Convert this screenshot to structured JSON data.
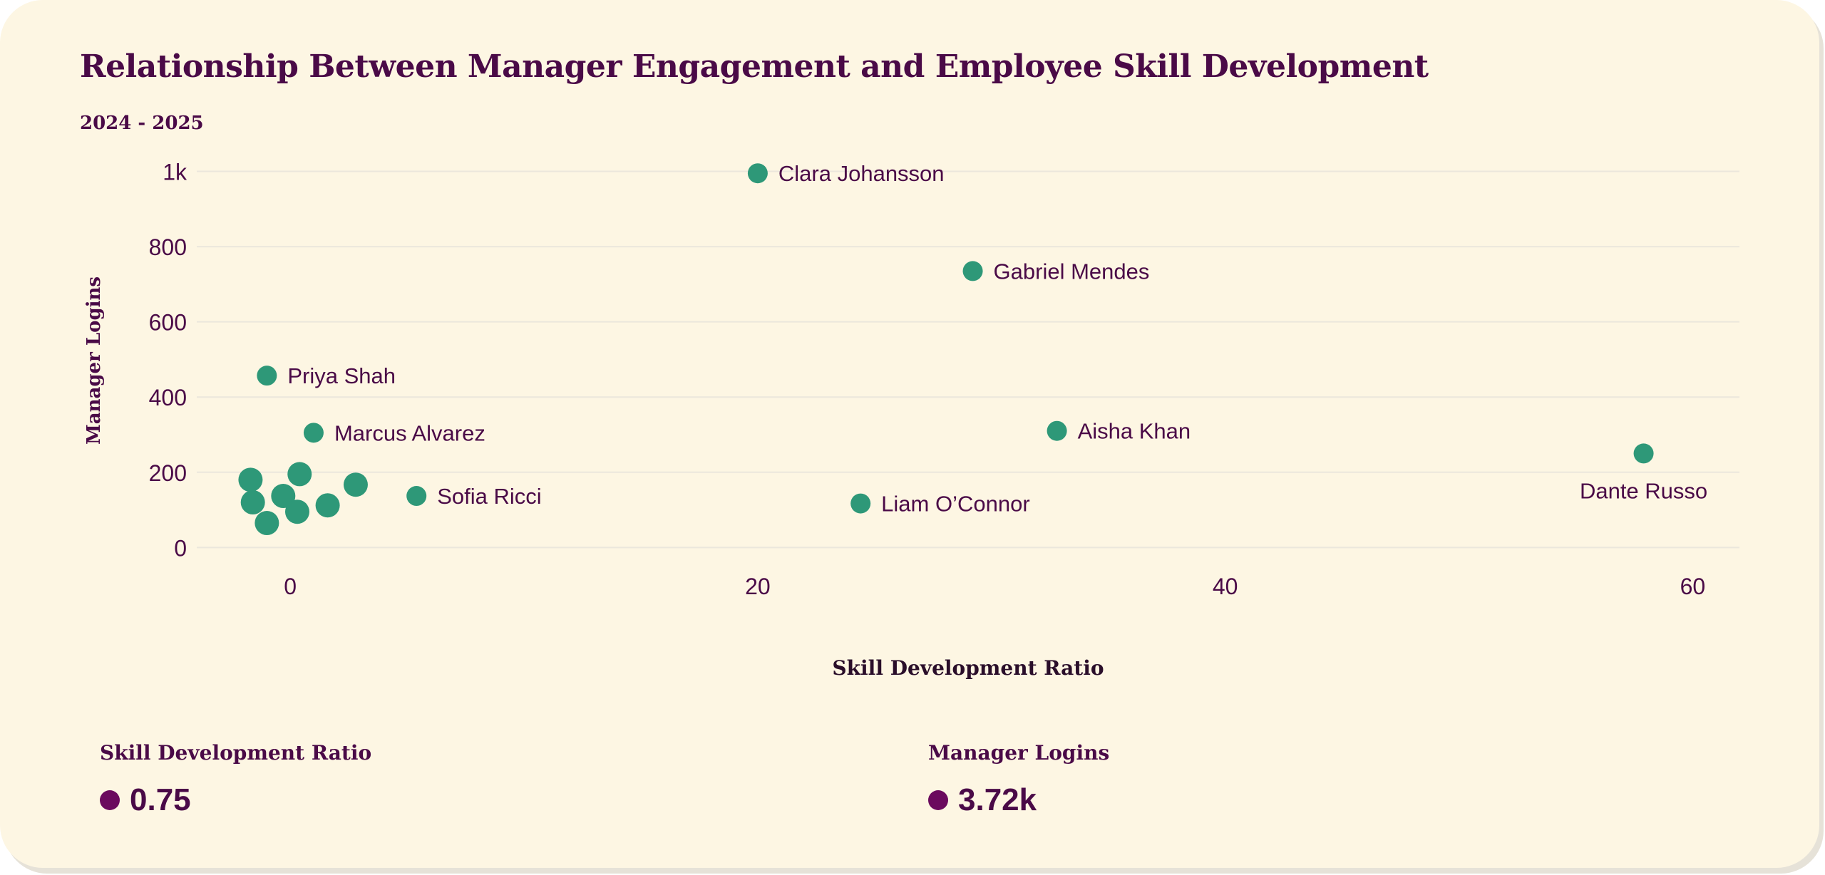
{
  "title": "Relationship Between Manager Engagement and Employee Skill Development",
  "subtitle": "2024 - 2025",
  "colors": {
    "background": "#fdf6e3",
    "text": "#4a0a47",
    "point": "#2e9878",
    "grid": "#ebe7dc",
    "kpi_dot": "#6b0a5e"
  },
  "chart_data": {
    "type": "scatter",
    "xlabel": "Skill Development Ratio",
    "ylabel": "Manager Logins",
    "xlim": [
      -4,
      62
    ],
    "ylim": [
      -60,
      1020
    ],
    "xticks": [
      {
        "value": 0,
        "label": "0"
      },
      {
        "value": 20,
        "label": "20"
      },
      {
        "value": 40,
        "label": "40"
      },
      {
        "value": 60,
        "label": "60"
      }
    ],
    "yticks": [
      {
        "value": 0,
        "label": "0"
      },
      {
        "value": 200,
        "label": "200"
      },
      {
        "value": 400,
        "label": "400"
      },
      {
        "value": 600,
        "label": "600"
      },
      {
        "value": 800,
        "label": "800"
      },
      {
        "value": 1000,
        "label": "1k"
      }
    ],
    "grid": true,
    "points": [
      {
        "x": 20.0,
        "y": 995,
        "label": "Clara Johansson",
        "label_pos": "right",
        "size": "small"
      },
      {
        "x": 29.2,
        "y": 735,
        "label": "Gabriel Mendes",
        "label_pos": "right",
        "size": "small"
      },
      {
        "x": -1.0,
        "y": 457,
        "label": "Priya Shah",
        "label_pos": "right",
        "size": "small"
      },
      {
        "x": 1.0,
        "y": 305,
        "label": "Marcus Alvarez",
        "label_pos": "right",
        "size": "small"
      },
      {
        "x": 32.8,
        "y": 310,
        "label": "Aisha Khan",
        "label_pos": "right",
        "size": "small"
      },
      {
        "x": 57.9,
        "y": 250,
        "label": "Dante Russo",
        "label_pos": "below",
        "size": "small"
      },
      {
        "x": 5.4,
        "y": 137,
        "label": "Sofia Ricci",
        "label_pos": "right",
        "size": "small"
      },
      {
        "x": 24.4,
        "y": 117,
        "label": "Liam O’Connor",
        "label_pos": "right",
        "size": "small"
      },
      {
        "x": -1.7,
        "y": 180,
        "label": "",
        "size": "large"
      },
      {
        "x": -1.6,
        "y": 120,
        "label": "",
        "size": "large"
      },
      {
        "x": -1.0,
        "y": 65,
        "label": "",
        "size": "large"
      },
      {
        "x": -0.3,
        "y": 137,
        "label": "",
        "size": "large"
      },
      {
        "x": 0.4,
        "y": 195,
        "label": "",
        "size": "large"
      },
      {
        "x": 0.3,
        "y": 95,
        "label": "",
        "size": "large"
      },
      {
        "x": 1.6,
        "y": 112,
        "label": "",
        "size": "large"
      },
      {
        "x": 2.8,
        "y": 167,
        "label": "",
        "size": "large"
      }
    ]
  },
  "kpis": [
    {
      "label": "Skill Development Ratio",
      "value": "0.75"
    },
    {
      "label": "Manager Logins",
      "value": "3.72k"
    }
  ]
}
